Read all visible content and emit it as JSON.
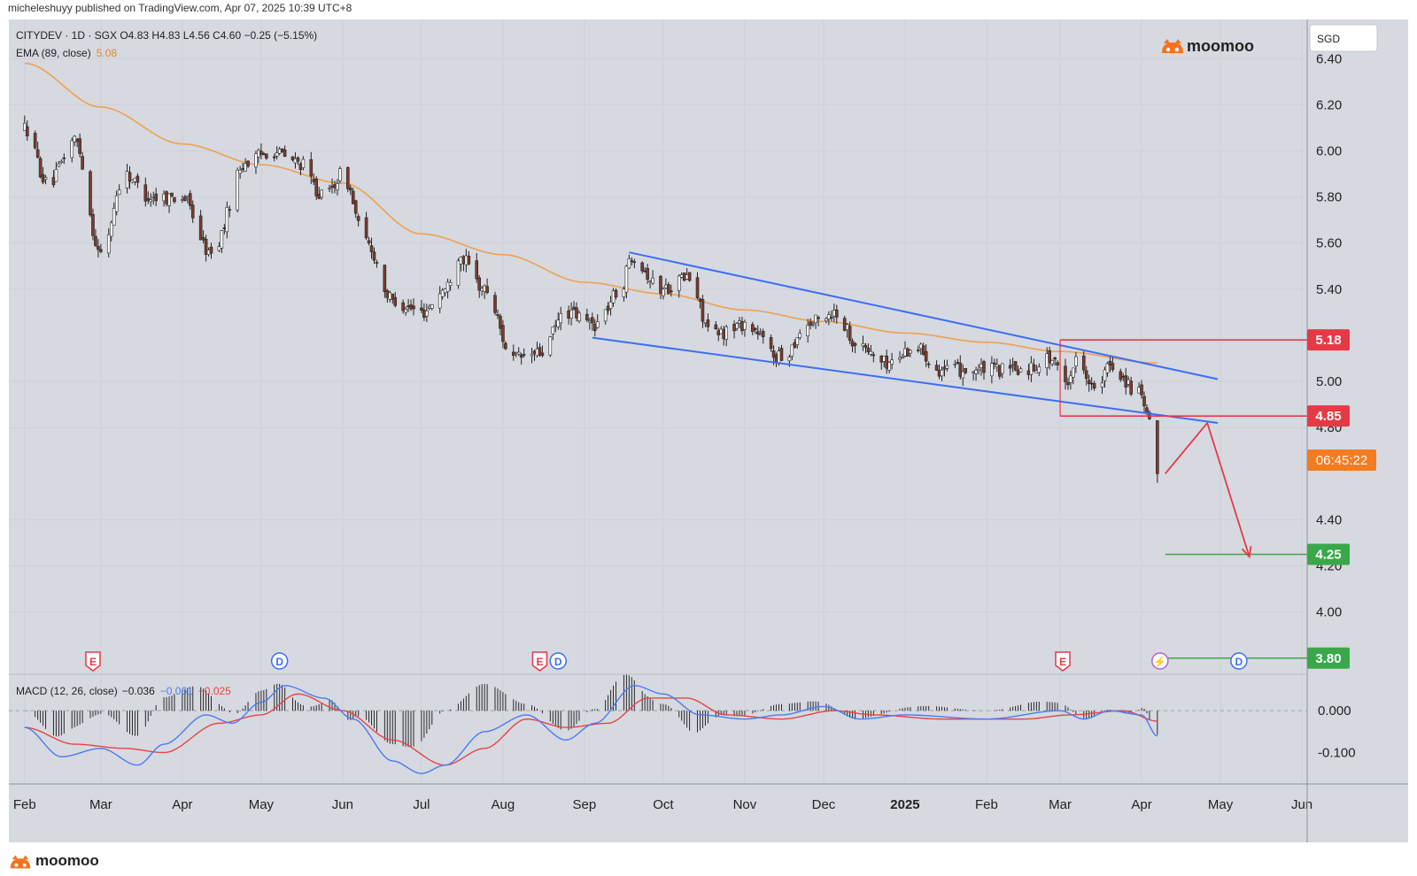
{
  "publisher": "micheleshuyy published on TradingView.com, Apr 07, 2025 10:39 UTC+8",
  "header": {
    "symbol_line": "CITYDEV · 1D · SGX  O4.83  H4.83  L4.56  C4.60  −0.25 (−5.15%)",
    "ema_label": "EMA (89, close)",
    "ema_value": "5.08",
    "macd_label": "MACD (12, 26, close)",
    "macd_values": [
      "−0.036",
      "−0.061",
      "−0.025"
    ]
  },
  "brand": "moomoo",
  "currency": "SGD",
  "countdown": "06:45:22",
  "colors": {
    "background": "#d6d9e0",
    "up": "#ffffff",
    "down": "#7a3c2c",
    "ema": "#f0a050",
    "channel": "#3d6ef5",
    "resistance": "#e63946",
    "target": "#3aa84a",
    "macd_line": "#4a7cf0",
    "signal_line": "#e64545",
    "countdown": "#f47c20",
    "brand": "#f4721e"
  },
  "price_labels": [
    {
      "value": "5.18",
      "color": "#e63946"
    },
    {
      "value": "4.85",
      "color": "#e63946"
    },
    {
      "value": "4.25",
      "color": "#3aa84a"
    },
    {
      "value": "3.80",
      "color": "#3aa84a"
    }
  ],
  "events": [
    {
      "label": "E",
      "date": "Feb 27 2024"
    },
    {
      "label": "D",
      "date": "May 08 2024"
    },
    {
      "label": "E",
      "date": "Aug 15 2024"
    },
    {
      "label": "D",
      "date": "Aug 22 2024"
    },
    {
      "label": "E",
      "date": "Mar 02 2025"
    },
    {
      "label": "⚡",
      "date": "Apr 08 2025"
    },
    {
      "label": "D",
      "date": "May 08 2025"
    }
  ],
  "chart_data": {
    "type": "candlestick",
    "x_tick_labels": [
      "Feb",
      "Mar",
      "Apr",
      "May",
      "Jun",
      "Jul",
      "Aug",
      "Sep",
      "Oct",
      "Nov",
      "Dec",
      "2025",
      "Feb",
      "Mar",
      "Apr",
      "May",
      "Jun"
    ],
    "y_tick_labels": [
      "6.40",
      "6.20",
      "6.00",
      "5.80",
      "5.60",
      "5.40",
      "5.00",
      "4.80",
      "4.40",
      "4.20",
      "4.00"
    ],
    "ylim": [
      3.73,
      6.57
    ],
    "macd_tick_labels": [
      "0.000",
      "-0.100"
    ],
    "macd_ylim": [
      -0.175,
      0.087
    ],
    "price_series_anchors": [
      [
        "2024-02-01",
        6.1
      ],
      [
        "2024-02-10",
        5.85
      ],
      [
        "2024-02-20",
        6.05
      ],
      [
        "2024-03-01",
        5.55
      ],
      [
        "2024-03-10",
        5.9
      ],
      [
        "2024-03-20",
        5.8
      ],
      [
        "2024-04-01",
        5.8
      ],
      [
        "2024-04-12",
        5.55
      ],
      [
        "2024-04-25",
        5.95
      ],
      [
        "2024-05-05",
        6.0
      ],
      [
        "2024-05-15",
        5.95
      ],
      [
        "2024-05-25",
        5.8
      ],
      [
        "2024-06-01",
        5.9
      ],
      [
        "2024-06-10",
        5.6
      ],
      [
        "2024-06-20",
        5.35
      ],
      [
        "2024-07-01",
        5.3
      ],
      [
        "2024-07-10",
        5.4
      ],
      [
        "2024-07-15",
        5.55
      ],
      [
        "2024-07-25",
        5.4
      ],
      [
        "2024-08-05",
        5.1
      ],
      [
        "2024-08-15",
        5.12
      ],
      [
        "2024-08-25",
        5.3
      ],
      [
        "2024-09-05",
        5.25
      ],
      [
        "2024-09-15",
        5.4
      ],
      [
        "2024-09-19",
        5.55
      ],
      [
        "2024-09-30",
        5.4
      ],
      [
        "2024-10-10",
        5.45
      ],
      [
        "2024-10-20",
        5.2
      ],
      [
        "2024-11-01",
        5.25
      ],
      [
        "2024-11-15",
        5.1
      ],
      [
        "2024-11-25",
        5.25
      ],
      [
        "2024-12-05",
        5.3
      ],
      [
        "2024-12-15",
        5.15
      ],
      [
        "2024-12-25",
        5.08
      ],
      [
        "2025-01-05",
        5.15
      ],
      [
        "2025-01-15",
        5.05
      ],
      [
        "2025-01-25",
        5.05
      ],
      [
        "2025-02-05",
        5.05
      ],
      [
        "2025-02-15",
        5.05
      ],
      [
        "2025-02-25",
        5.1
      ],
      [
        "2025-03-03",
        5.0
      ],
      [
        "2025-03-08",
        5.1
      ],
      [
        "2025-03-15",
        4.95
      ],
      [
        "2025-03-20",
        5.07
      ],
      [
        "2025-03-31",
        4.95
      ],
      [
        "2025-04-03",
        4.85
      ],
      [
        "2025-04-07",
        4.6
      ]
    ],
    "last_candle": {
      "date": "2025-04-07",
      "open": 4.83,
      "high": 4.83,
      "low": 4.56,
      "close": 4.6
    },
    "ema_89": [
      [
        "2024-02-01",
        6.38
      ],
      [
        "2024-03-01",
        6.19
      ],
      [
        "2024-04-01",
        6.03
      ],
      [
        "2024-05-01",
        5.94
      ],
      [
        "2024-06-01",
        5.86
      ],
      [
        "2024-07-01",
        5.64
      ],
      [
        "2024-08-01",
        5.55
      ],
      [
        "2024-09-01",
        5.43
      ],
      [
        "2024-10-01",
        5.38
      ],
      [
        "2024-11-01",
        5.31
      ],
      [
        "2024-12-01",
        5.26
      ],
      [
        "2025-01-01",
        5.21
      ],
      [
        "2025-02-01",
        5.17
      ],
      [
        "2025-03-01",
        5.13
      ],
      [
        "2025-04-07",
        5.08
      ]
    ],
    "channel_upper": [
      [
        "2024-09-18",
        5.56
      ],
      [
        "2025-04-30",
        5.01
      ]
    ],
    "channel_lower": [
      [
        "2024-09-04",
        5.19
      ],
      [
        "2025-04-30",
        4.82
      ]
    ],
    "horizontal_levels": [
      {
        "value": 5.18,
        "from": "2025-03-01",
        "to": "2025-05-31"
      },
      {
        "value": 4.85,
        "from": "2025-03-01",
        "to": "2025-05-31"
      },
      {
        "value": 4.25,
        "from": "2025-04-10",
        "to": "2025-05-31"
      },
      {
        "value": 3.8,
        "from": "2025-04-10",
        "to": "2025-05-31"
      }
    ],
    "projection_path": [
      [
        "2025-04-10",
        4.6
      ],
      [
        "2025-04-26",
        4.82
      ],
      [
        "2025-05-12",
        4.24
      ]
    ],
    "macd_line_anchors": [
      [
        "2024-02-01",
        -0.04
      ],
      [
        "2024-02-15",
        -0.11
      ],
      [
        "2024-03-01",
        -0.09
      ],
      [
        "2024-03-15",
        -0.13
      ],
      [
        "2024-03-25",
        -0.08
      ],
      [
        "2024-04-10",
        -0.01
      ],
      [
        "2024-04-20",
        -0.03
      ],
      [
        "2024-05-01",
        0.02
      ],
      [
        "2024-05-10",
        0.06
      ],
      [
        "2024-05-25",
        0.03
      ],
      [
        "2024-06-05",
        -0.02
      ],
      [
        "2024-06-20",
        -0.12
      ],
      [
        "2024-07-01",
        -0.15
      ],
      [
        "2024-07-10",
        -0.13
      ],
      [
        "2024-07-25",
        -0.05
      ],
      [
        "2024-08-10",
        -0.01
      ],
      [
        "2024-08-25",
        -0.07
      ],
      [
        "2024-09-05",
        -0.03
      ],
      [
        "2024-09-20",
        0.06
      ],
      [
        "2024-10-01",
        0.04
      ],
      [
        "2024-10-15",
        -0.01
      ],
      [
        "2024-11-01",
        -0.02
      ],
      [
        "2024-11-15",
        -0.01
      ],
      [
        "2024-12-01",
        0.01
      ],
      [
        "2024-12-15",
        -0.02
      ],
      [
        "2025-01-01",
        -0.01
      ],
      [
        "2025-02-01",
        -0.02
      ],
      [
        "2025-03-01",
        0.0
      ],
      [
        "2025-03-10",
        -0.02
      ],
      [
        "2025-03-20",
        0.0
      ],
      [
        "2025-04-01",
        -0.01
      ],
      [
        "2025-04-07",
        -0.061
      ]
    ],
    "signal_line_anchors": [
      [
        "2024-02-01",
        -0.04
      ],
      [
        "2024-02-20",
        -0.08
      ],
      [
        "2024-03-10",
        -0.09
      ],
      [
        "2024-03-25",
        -0.1
      ],
      [
        "2024-04-15",
        -0.03
      ],
      [
        "2024-05-01",
        -0.01
      ],
      [
        "2024-05-15",
        0.04
      ],
      [
        "2024-06-01",
        0.0
      ],
      [
        "2024-06-20",
        -0.07
      ],
      [
        "2024-07-10",
        -0.13
      ],
      [
        "2024-07-25",
        -0.09
      ],
      [
        "2024-08-10",
        -0.02
      ],
      [
        "2024-08-25",
        -0.04
      ],
      [
        "2024-09-10",
        -0.03
      ],
      [
        "2024-09-25",
        0.03
      ],
      [
        "2024-10-10",
        0.03
      ],
      [
        "2024-10-25",
        -0.01
      ],
      [
        "2024-11-15",
        -0.02
      ],
      [
        "2024-12-05",
        0.0
      ],
      [
        "2024-12-20",
        -0.01
      ],
      [
        "2025-01-15",
        -0.02
      ],
      [
        "2025-02-15",
        -0.02
      ],
      [
        "2025-03-05",
        -0.01
      ],
      [
        "2025-03-25",
        0.0
      ],
      [
        "2025-04-07",
        -0.025
      ]
    ]
  }
}
